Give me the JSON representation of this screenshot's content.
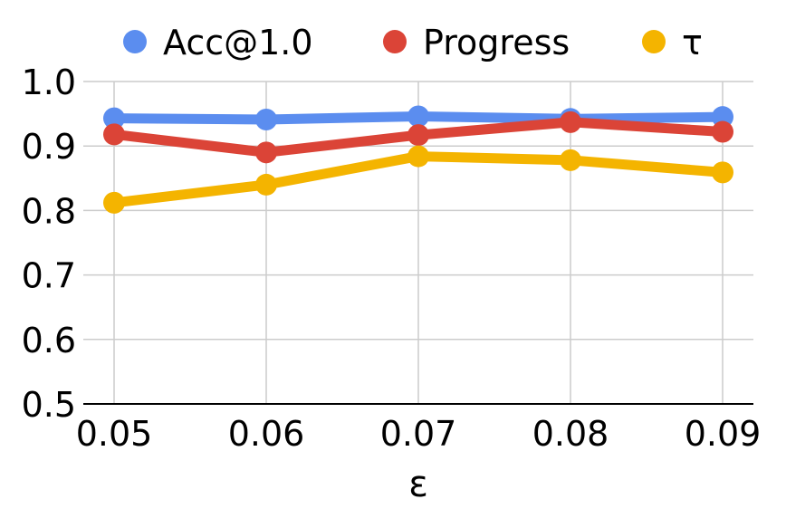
{
  "chart_data": {
    "type": "line",
    "title": "",
    "xlabel": "ε",
    "ylabel": "",
    "x": [
      0.05,
      0.06,
      0.07,
      0.08,
      0.09
    ],
    "x_tick_labels": [
      "0.05",
      "0.06",
      "0.07",
      "0.08",
      "0.09"
    ],
    "y_tick_labels": [
      "0.5",
      "0.6",
      "0.7",
      "0.8",
      "0.9",
      "1.0"
    ],
    "ylim": [
      0.5,
      1.0
    ],
    "grid": true,
    "legend_position": "top",
    "series": [
      {
        "name": "Acc@1.0",
        "color": "#5B8DEF",
        "values": [
          0.943,
          0.941,
          0.946,
          0.942,
          0.945
        ]
      },
      {
        "name": "Progress",
        "color": "#DB4437",
        "values": [
          0.918,
          0.89,
          0.917,
          0.937,
          0.922
        ]
      },
      {
        "name": "τ",
        "color": "#F4B400",
        "values": [
          0.812,
          0.84,
          0.884,
          0.878,
          0.859
        ]
      }
    ]
  }
}
